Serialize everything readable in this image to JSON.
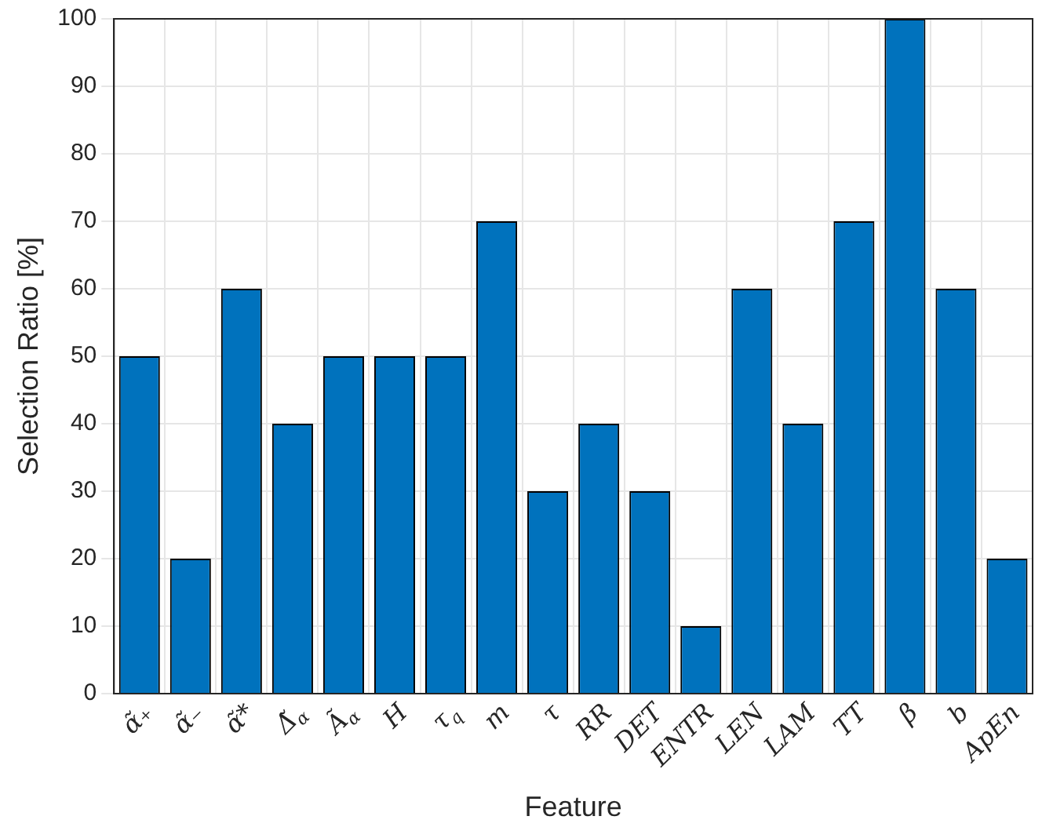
{
  "chart_data": {
    "type": "bar",
    "xlabel": "Feature",
    "ylabel": "Selection Ratio [%]",
    "categories": [
      "α̃₊",
      "α̃₋",
      "α̃*",
      "Δ̃$_{α}$",
      "Ã$_{α}$",
      "H",
      "τ$_{q}$",
      "m",
      "τ",
      "RR",
      "DET",
      "ENTR",
      "LEN",
      "LAM",
      "TT",
      "β",
      "b",
      "ApEn"
    ],
    "values": [
      50,
      20,
      60,
      40,
      50,
      50,
      50,
      70,
      30,
      40,
      30,
      10,
      60,
      40,
      70,
      100,
      60,
      20
    ],
    "color": "#0072bd",
    "ylim": [
      0,
      100
    ],
    "yticks": [
      0,
      10,
      20,
      30,
      40,
      50,
      60,
      70,
      80,
      90,
      100
    ],
    "grid": true
  }
}
